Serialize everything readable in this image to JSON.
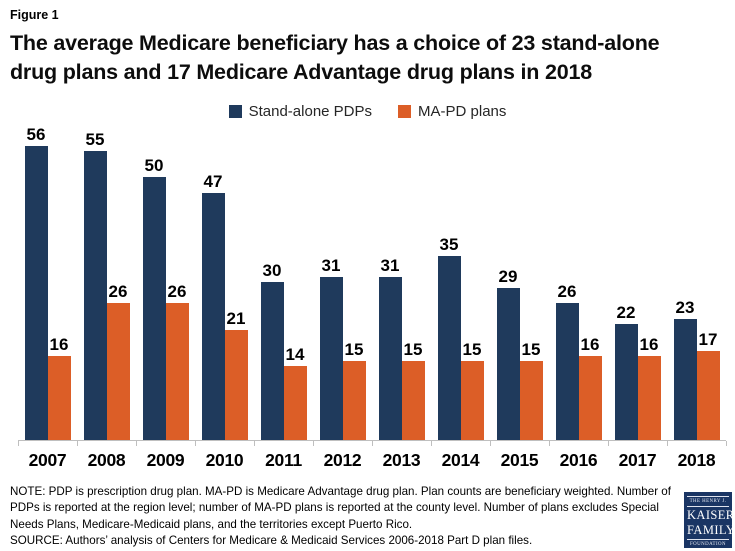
{
  "figure_label": "Figure 1",
  "title_lines": [
    "The average Medicare beneficiary has a choice of 23 stand-alone",
    "drug plans and 17 Medicare Advantage drug plans in 2018"
  ],
  "chart_data": {
    "type": "bar",
    "title": "The average Medicare beneficiary has a choice of 23 stand-alone drug plans and 17 Medicare Advantage drug plans in 2018",
    "categories": [
      "2007",
      "2008",
      "2009",
      "2010",
      "2011",
      "2012",
      "2013",
      "2014",
      "2015",
      "2016",
      "2017",
      "2018"
    ],
    "series": [
      {
        "name": "Stand-alone PDPs",
        "color": "#1F3A5C",
        "values": [
          56,
          55,
          50,
          47,
          30,
          31,
          31,
          35,
          29,
          26,
          22,
          23
        ]
      },
      {
        "name": "MA-PD plans",
        "color": "#DC5E27",
        "values": [
          16,
          26,
          26,
          21,
          14,
          15,
          15,
          15,
          15,
          16,
          16,
          17
        ]
      }
    ],
    "ylim": [
      0,
      60
    ],
    "data_labels": true,
    "legend_position": "top",
    "gridlines": false,
    "y_axis_visible": false,
    "axis_color": "#BFBFBF"
  },
  "legend": {
    "items": [
      {
        "label": "Stand-alone PDPs",
        "color": "#1F3A5C"
      },
      {
        "label": "MA-PD plans",
        "color": "#DC5E27"
      }
    ]
  },
  "footer": {
    "note": "NOTE: PDP is prescription drug plan. MA-PD is Medicare Advantage drug plan. Plan counts are beneficiary weighted. Number of PDPs is reported at the region level; number of MA-PD plans is reported at the county level. Number of plans excludes Special Needs Plans, Medicare-Medicaid plans, and the territories except Puerto Rico.",
    "source": "SOURCE: Authors’ analysis of Centers for Medicare & Medicaid Services 2006-2018 Part D plan files."
  },
  "logo": {
    "lines": [
      "THE HENRY J.",
      "KAISER",
      "FAMILY",
      "FOUNDATION"
    ],
    "bg_color": "#1A3564"
  }
}
